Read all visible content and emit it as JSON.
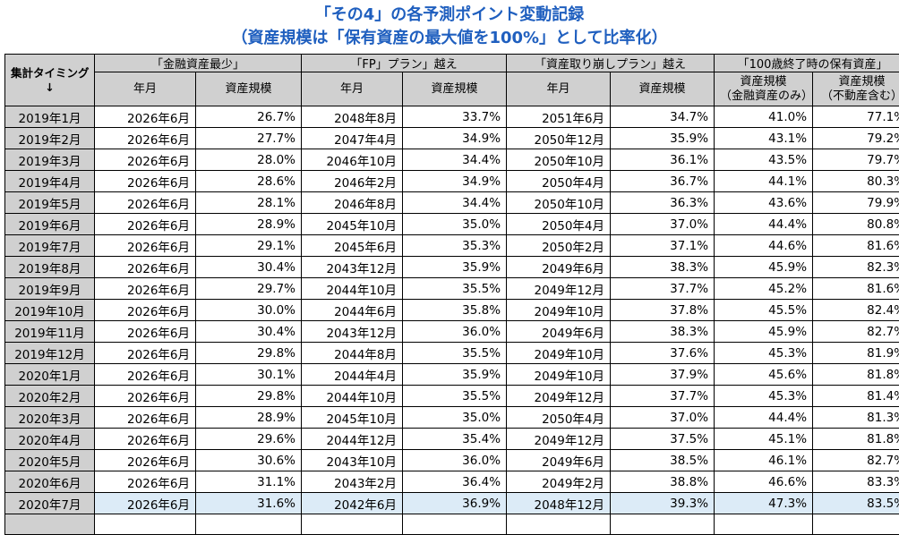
{
  "title": {
    "line1": "「その4」の各予測ポイント変動記録",
    "line2": "（資産規模は「保有資産の最大値を100%」として比率化）"
  },
  "header": {
    "corner_line1": "集計タイミング",
    "corner_line2": "↓",
    "groups": [
      "「金融資産最少」",
      "「FP」プラン」越え",
      "「資産取り崩しプラン」越え",
      "「100歳終了時の保有資産」"
    ],
    "sub": {
      "year_month": "年月",
      "asset_scale": "資産規模",
      "asset_scale_fin_1": "資産規模",
      "asset_scale_fin_2": "（金融資産のみ）",
      "asset_scale_re_1": "資産規模",
      "asset_scale_re_2": "（不動産含む）"
    }
  },
  "rows": [
    {
      "t": "2019年1月",
      "a_ym": "2026年6月",
      "a_v": "26.7%",
      "b_ym": "2048年8月",
      "b_v": "33.7%",
      "c_ym": "2051年6月",
      "c_v": "34.7%",
      "d_f": "41.0%",
      "d_r": "77.1%"
    },
    {
      "t": "2019年2月",
      "a_ym": "2026年6月",
      "a_v": "27.7%",
      "b_ym": "2047年4月",
      "b_v": "34.9%",
      "c_ym": "2050年12月",
      "c_v": "35.9%",
      "d_f": "43.1%",
      "d_r": "79.2%"
    },
    {
      "t": "2019年3月",
      "a_ym": "2026年6月",
      "a_v": "28.0%",
      "b_ym": "2046年10月",
      "b_v": "34.4%",
      "c_ym": "2050年10月",
      "c_v": "36.1%",
      "d_f": "43.5%",
      "d_r": "79.7%"
    },
    {
      "t": "2019年4月",
      "a_ym": "2026年6月",
      "a_v": "28.6%",
      "b_ym": "2046年2月",
      "b_v": "34.9%",
      "c_ym": "2050年4月",
      "c_v": "36.7%",
      "d_f": "44.1%",
      "d_r": "80.3%"
    },
    {
      "t": "2019年5月",
      "a_ym": "2026年6月",
      "a_v": "28.1%",
      "b_ym": "2046年8月",
      "b_v": "34.4%",
      "c_ym": "2050年10月",
      "c_v": "36.3%",
      "d_f": "43.6%",
      "d_r": "79.9%"
    },
    {
      "t": "2019年6月",
      "a_ym": "2026年6月",
      "a_v": "28.9%",
      "b_ym": "2045年10月",
      "b_v": "35.0%",
      "c_ym": "2050年4月",
      "c_v": "37.0%",
      "d_f": "44.4%",
      "d_r": "80.8%"
    },
    {
      "t": "2019年7月",
      "a_ym": "2026年6月",
      "a_v": "29.1%",
      "b_ym": "2045年6月",
      "b_v": "35.3%",
      "c_ym": "2050年2月",
      "c_v": "37.1%",
      "d_f": "44.6%",
      "d_r": "81.6%"
    },
    {
      "t": "2019年8月",
      "a_ym": "2026年6月",
      "a_v": "30.4%",
      "b_ym": "2043年12月",
      "b_v": "35.9%",
      "c_ym": "2049年6月",
      "c_v": "38.3%",
      "d_f": "45.9%",
      "d_r": "82.3%"
    },
    {
      "t": "2019年9月",
      "a_ym": "2026年6月",
      "a_v": "29.7%",
      "b_ym": "2044年10月",
      "b_v": "35.5%",
      "c_ym": "2049年12月",
      "c_v": "37.7%",
      "d_f": "45.2%",
      "d_r": "81.6%"
    },
    {
      "t": "2019年10月",
      "a_ym": "2026年6月",
      "a_v": "30.0%",
      "b_ym": "2044年6月",
      "b_v": "35.8%",
      "c_ym": "2049年10月",
      "c_v": "37.8%",
      "d_f": "45.5%",
      "d_r": "82.4%"
    },
    {
      "t": "2019年11月",
      "a_ym": "2026年6月",
      "a_v": "30.4%",
      "b_ym": "2043年12月",
      "b_v": "36.0%",
      "c_ym": "2049年6月",
      "c_v": "38.3%",
      "d_f": "45.9%",
      "d_r": "82.7%"
    },
    {
      "t": "2019年12月",
      "a_ym": "2026年6月",
      "a_v": "29.8%",
      "b_ym": "2044年8月",
      "b_v": "35.5%",
      "c_ym": "2049年10月",
      "c_v": "37.6%",
      "d_f": "45.3%",
      "d_r": "81.9%"
    },
    {
      "t": "2020年1月",
      "a_ym": "2026年6月",
      "a_v": "30.1%",
      "b_ym": "2044年4月",
      "b_v": "35.9%",
      "c_ym": "2049年10月",
      "c_v": "37.9%",
      "d_f": "45.6%",
      "d_r": "81.8%"
    },
    {
      "t": "2020年2月",
      "a_ym": "2026年6月",
      "a_v": "29.8%",
      "b_ym": "2044年10月",
      "b_v": "35.5%",
      "c_ym": "2049年12月",
      "c_v": "37.7%",
      "d_f": "45.3%",
      "d_r": "81.4%"
    },
    {
      "t": "2020年3月",
      "a_ym": "2026年6月",
      "a_v": "28.9%",
      "b_ym": "2045年10月",
      "b_v": "35.0%",
      "c_ym": "2050年4月",
      "c_v": "37.0%",
      "d_f": "44.4%",
      "d_r": "81.3%"
    },
    {
      "t": "2020年4月",
      "a_ym": "2026年6月",
      "a_v": "29.6%",
      "b_ym": "2044年12月",
      "b_v": "35.4%",
      "c_ym": "2049年12月",
      "c_v": "37.5%",
      "d_f": "45.1%",
      "d_r": "81.8%"
    },
    {
      "t": "2020年5月",
      "a_ym": "2026年6月",
      "a_v": "30.6%",
      "b_ym": "2043年10月",
      "b_v": "36.0%",
      "c_ym": "2049年6月",
      "c_v": "38.5%",
      "d_f": "46.1%",
      "d_r": "82.7%"
    },
    {
      "t": "2020年6月",
      "a_ym": "2026年6月",
      "a_v": "31.1%",
      "b_ym": "2043年2月",
      "b_v": "36.4%",
      "c_ym": "2049年2月",
      "c_v": "38.8%",
      "d_f": "46.6%",
      "d_r": "83.3%"
    },
    {
      "t": "2020年7月",
      "a_ym": "2026年6月",
      "a_v": "31.6%",
      "b_ym": "2042年6月",
      "b_v": "36.9%",
      "c_ym": "2048年12月",
      "c_v": "39.3%",
      "d_f": "47.3%",
      "d_r": "83.5%",
      "highlight": true
    }
  ],
  "colors": {
    "title": "#1f5fbf",
    "header_bg": "#d0d0d0",
    "highlight_bg": "#dcebf7"
  }
}
